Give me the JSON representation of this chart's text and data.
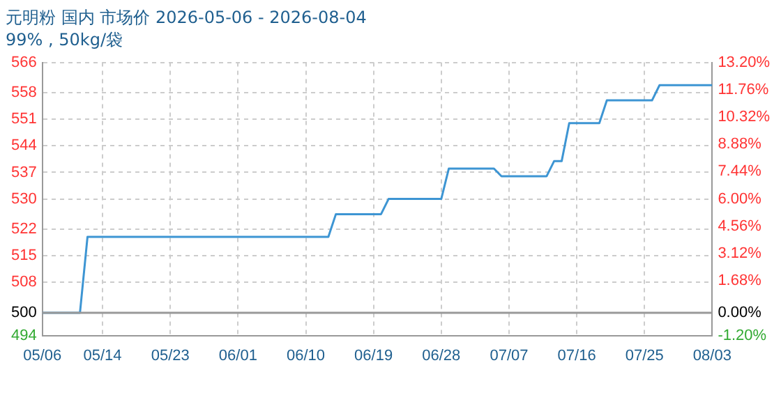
{
  "chart_data": {
    "type": "line",
    "title": "元明粉 国内 市场价 2026-05-06 - 2026-08-04",
    "subtitle": "99% , 50kg/袋",
    "x": [
      "2026-05-06",
      "2026-05-11",
      "2026-05-12",
      "2026-06-13",
      "2026-06-14",
      "2026-06-20",
      "2026-06-21",
      "2026-06-28",
      "2026-06-29",
      "2026-07-05",
      "2026-07-06",
      "2026-07-12",
      "2026-07-13",
      "2026-07-14",
      "2026-07-15",
      "2026-07-19",
      "2026-07-20",
      "2026-07-26",
      "2026-07-27",
      "2026-08-03"
    ],
    "series": [
      {
        "color": "#3d95d3",
        "values": [
          500,
          500,
          520,
          520,
          526,
          526,
          530,
          530,
          538,
          538,
          536,
          536,
          540,
          540,
          550,
          550,
          556,
          556,
          560,
          560
        ]
      }
    ],
    "xlim": [
      "2026-05-06",
      "2026-08-03"
    ],
    "xticks": [
      {
        "value": "2026-05-06",
        "label": "05/06"
      },
      {
        "value": "2026-05-14",
        "label": "05/14"
      },
      {
        "value": "2026-05-23",
        "label": "05/23"
      },
      {
        "value": "2026-06-01",
        "label": "06/01"
      },
      {
        "value": "2026-06-10",
        "label": "06/10"
      },
      {
        "value": "2026-06-19",
        "label": "06/19"
      },
      {
        "value": "2026-06-28",
        "label": "06/28"
      },
      {
        "value": "2026-07-07",
        "label": "07/07"
      },
      {
        "value": "2026-07-16",
        "label": "07/16"
      },
      {
        "value": "2026-07-25",
        "label": "07/25"
      },
      {
        "value": "2026-08-03",
        "label": "08/03"
      }
    ],
    "ylim": [
      494,
      566
    ],
    "yticks": [
      494,
      500,
      508,
      515,
      522,
      530,
      537,
      544,
      551,
      558,
      566
    ],
    "y2lim": [
      -1.2,
      13.2
    ],
    "y2ticks": [
      {
        "value": -1.2,
        "label": "-1.20%"
      },
      {
        "value": 0,
        "label": "0.00%"
      },
      {
        "value": 1.68,
        "label": "1.68%"
      },
      {
        "value": 3.12,
        "label": "3.12%"
      },
      {
        "value": 4.56,
        "label": "4.56%"
      },
      {
        "value": 6,
        "label": "6.00%"
      },
      {
        "value": 7.44,
        "label": "7.44%"
      },
      {
        "value": 8.88,
        "label": "8.88%"
      },
      {
        "value": 10.32,
        "label": "10.32%"
      },
      {
        "value": 11.76,
        "label": "11.76%"
      },
      {
        "value": 13.2,
        "label": "13.20%"
      }
    ],
    "ref_lines": [
      {
        "axis": "y",
        "value": 500,
        "color": "#999999"
      }
    ],
    "grid": true,
    "legend": false,
    "marker": "none",
    "line_style": "solid"
  }
}
